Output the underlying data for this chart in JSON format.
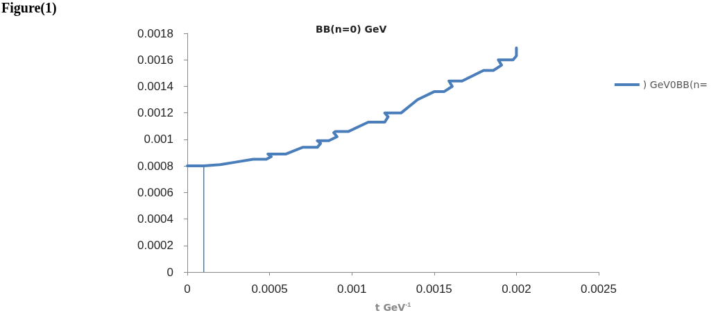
{
  "chart_data": {
    "type": "line",
    "title": "BB(n=0) GeV",
    "xlabel": "t GeV$^{-1}$",
    "annotations": [
      "Figure(1)"
    ],
    "xlim": [
      0,
      0.0025
    ],
    "xticks": [
      0,
      0.0005,
      0.001,
      0.0015,
      0.002,
      0.0025
    ],
    "ylim": [
      0,
      0.0018
    ],
    "yticks": [
      0,
      0.0002,
      0.0004,
      0.0006,
      0.0008,
      0.001,
      0.0012,
      0.0014,
      0.0016,
      0.0018
    ],
    "grid": false,
    "legend": "right",
    "marker": "none",
    "line_style": "solid",
    "series": [
      {
        "name": ") GeV0BB(n=",
        "color": "#4a7ebb",
        "x": [
          0,
          0.0001,
          0.0002,
          0.0003,
          0.0004,
          0.00048,
          0.00051,
          0.00049,
          0.0005,
          0.0006,
          0.0007,
          0.00079,
          0.00081,
          0.00079,
          0.0008,
          0.00086,
          0.00091,
          0.00089,
          0.0009,
          0.00098,
          0.0011,
          0.0012,
          0.00122,
          0.0012,
          0.00121,
          0.0013,
          0.0014,
          0.0015,
          0.00156,
          0.00161,
          0.00159,
          0.0016,
          0.00167,
          0.0018,
          0.00186,
          0.00191,
          0.00189,
          0.0019,
          0.00198,
          0.002,
          0.002
        ],
        "values": [
          0.0008,
          0.0008,
          0.00081,
          0.00083,
          0.00085,
          0.00085,
          0.00087,
          0.00089,
          0.00089,
          0.00089,
          0.00094,
          0.00094,
          0.00097,
          0.00099,
          0.00099,
          0.00099,
          0.00102,
          0.00105,
          0.00106,
          0.00106,
          0.00113,
          0.00113,
          0.00117,
          0.0012,
          0.0012,
          0.0012,
          0.0013,
          0.00136,
          0.00136,
          0.0014,
          0.00144,
          0.00144,
          0.00144,
          0.00152,
          0.00152,
          0.00156,
          0.0016,
          0.0016,
          0.0016,
          0.00163,
          0.00169
        ]
      },
      {
        "color": "#4a7ebb",
        "x": [
          0.0001,
          0.0001
        ],
        "values": [
          0,
          0.0008
        ]
      }
    ]
  }
}
